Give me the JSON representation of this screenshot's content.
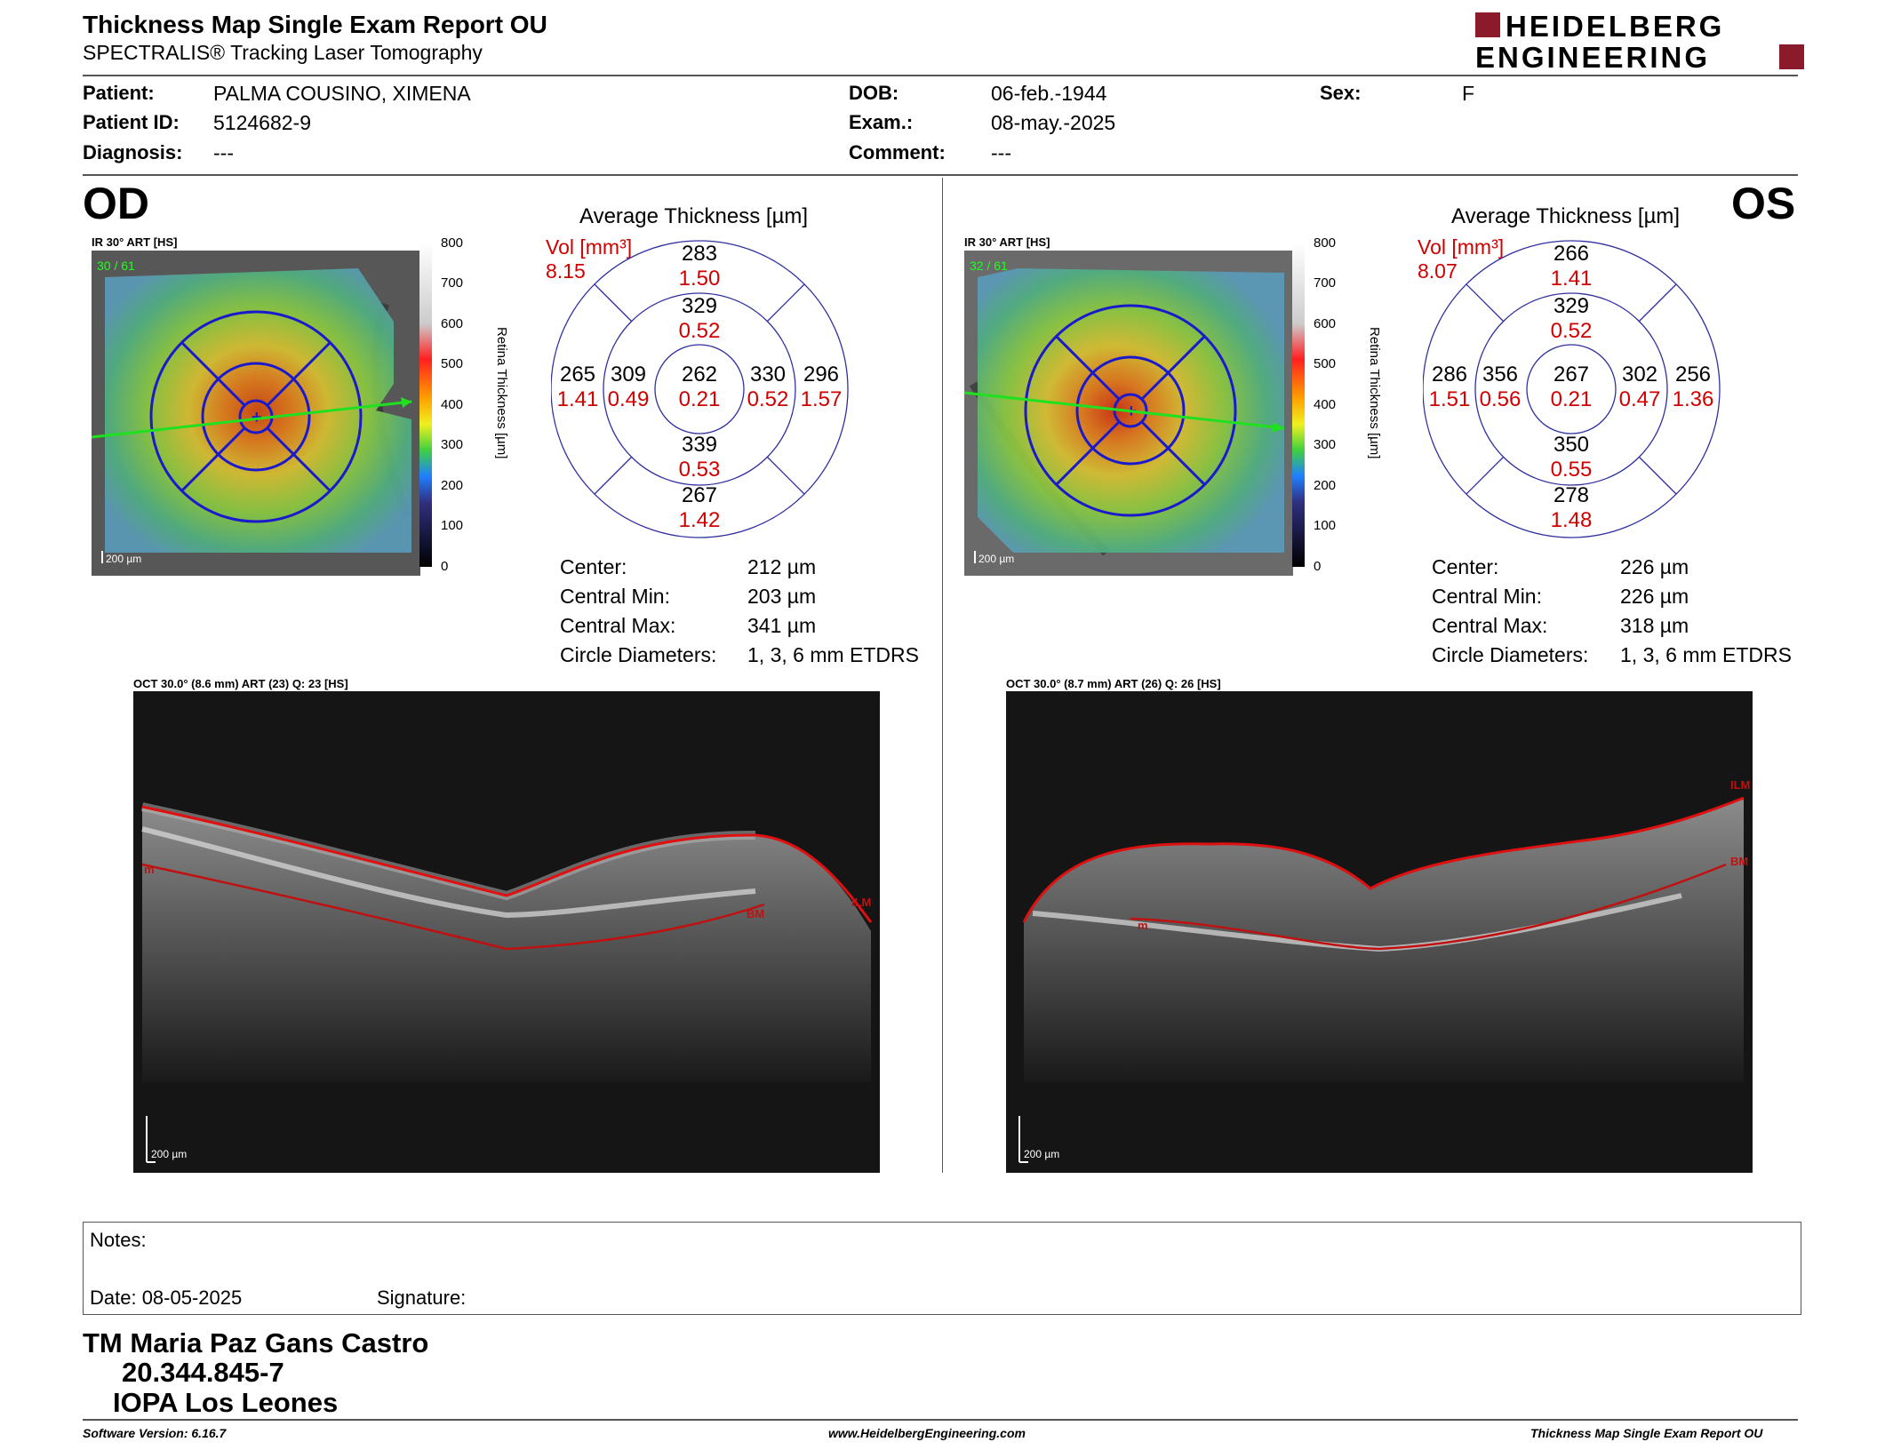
{
  "header": {
    "title": "Thickness Map Single Exam Report OU",
    "subtitle": "SPECTRALIS® Tracking Laser Tomography",
    "logo_line1": "HEIDELBERG",
    "logo_line2": "ENGINEERING"
  },
  "patient": {
    "patient_label": "Patient:",
    "patient_value": "PALMA COUSINO, XIMENA",
    "id_label": "Patient ID:",
    "id_value": "5124682-9",
    "diagnosis_label": "Diagnosis:",
    "diagnosis_value": "---",
    "dob_label": "DOB:",
    "dob_value": "06-feb.-1944",
    "exam_label": "Exam.:",
    "exam_value": "08-may.-2025",
    "comment_label": "Comment:",
    "comment_value": "---",
    "sex_label": "Sex:",
    "sex_value": "F"
  },
  "od": {
    "eye": "OD",
    "ir_caption": "IR 30° ART [HS]",
    "frames": "30 / 61",
    "scale_bar": "200 µm",
    "avg_title": "Average Thickness [µm]",
    "vol_label": "Vol [mm³]",
    "vol_total": "8.15",
    "sectors": {
      "center_t": "262",
      "center_v": "0.21",
      "inner_sup_t": "329",
      "inner_sup_v": "0.52",
      "inner_inf_t": "339",
      "inner_inf_v": "0.53",
      "inner_left_t": "309",
      "inner_left_v": "0.49",
      "inner_right_t": "330",
      "inner_right_v": "0.52",
      "outer_sup_t": "283",
      "outer_sup_v": "1.50",
      "outer_inf_t": "267",
      "outer_inf_v": "1.42",
      "outer_left_t": "265",
      "outer_left_v": "1.41",
      "outer_right_t": "296",
      "outer_right_v": "1.57"
    },
    "stats": {
      "center_label": "Center:",
      "center_value": "212 µm",
      "min_label": "Central Min:",
      "min_value": "203 µm",
      "max_label": "Central Max:",
      "max_value": "341 µm",
      "diam_label": "Circle Diameters:",
      "diam_value": "1, 3, 6 mm ETDRS"
    },
    "oct_caption": "OCT 30.0° (8.6 mm) ART (23) Q: 23 [HS]",
    "oct_scale": "200 µm",
    "ilm_label": "ILM",
    "bm_label": "BM",
    "m_label": "m"
  },
  "os": {
    "eye": "OS",
    "ir_caption": "IR 30° ART [HS]",
    "frames": "32 / 61",
    "scale_bar": "200 µm",
    "avg_title": "Average Thickness [µm]",
    "vol_label": "Vol [mm³]",
    "vol_total": "8.07",
    "sectors": {
      "center_t": "267",
      "center_v": "0.21",
      "inner_sup_t": "329",
      "inner_sup_v": "0.52",
      "inner_inf_t": "350",
      "inner_inf_v": "0.55",
      "inner_left_t": "356",
      "inner_left_v": "0.56",
      "inner_right_t": "302",
      "inner_right_v": "0.47",
      "outer_sup_t": "266",
      "outer_sup_v": "1.41",
      "outer_inf_t": "278",
      "outer_inf_v": "1.48",
      "outer_left_t": "286",
      "outer_left_v": "1.51",
      "outer_right_t": "256",
      "outer_right_v": "1.36"
    },
    "stats": {
      "center_label": "Center:",
      "center_value": "226 µm",
      "min_label": "Central Min:",
      "min_value": "226 µm",
      "max_label": "Central Max:",
      "max_value": "318 µm",
      "diam_label": "Circle Diameters:",
      "diam_value": "1, 3, 6 mm ETDRS"
    },
    "oct_caption": "OCT 30.0° (8.7 mm) ART (26) Q: 26 [HS]",
    "oct_scale": "200 µm",
    "ilm_label": "ILM",
    "bm_label": "BM",
    "m_label": "m"
  },
  "colorbar": {
    "title": "Retina Thickness [µm]",
    "ticks": [
      "800",
      "700",
      "600",
      "500",
      "400",
      "300",
      "200",
      "100",
      "0"
    ]
  },
  "notes": {
    "notes_label": "Notes:",
    "date_label": "Date: 08-05-2025",
    "signature_label": "Signature:"
  },
  "signature": {
    "name": "TM Maria Paz Gans Castro",
    "rut": "20.344.845-7",
    "place": "IOPA Los Leones"
  },
  "footer": {
    "software": "Software Version: 6.16.7",
    "url": "www.HeidelbergEngineering.com",
    "report": "Thickness Map Single Exam Report OU"
  }
}
